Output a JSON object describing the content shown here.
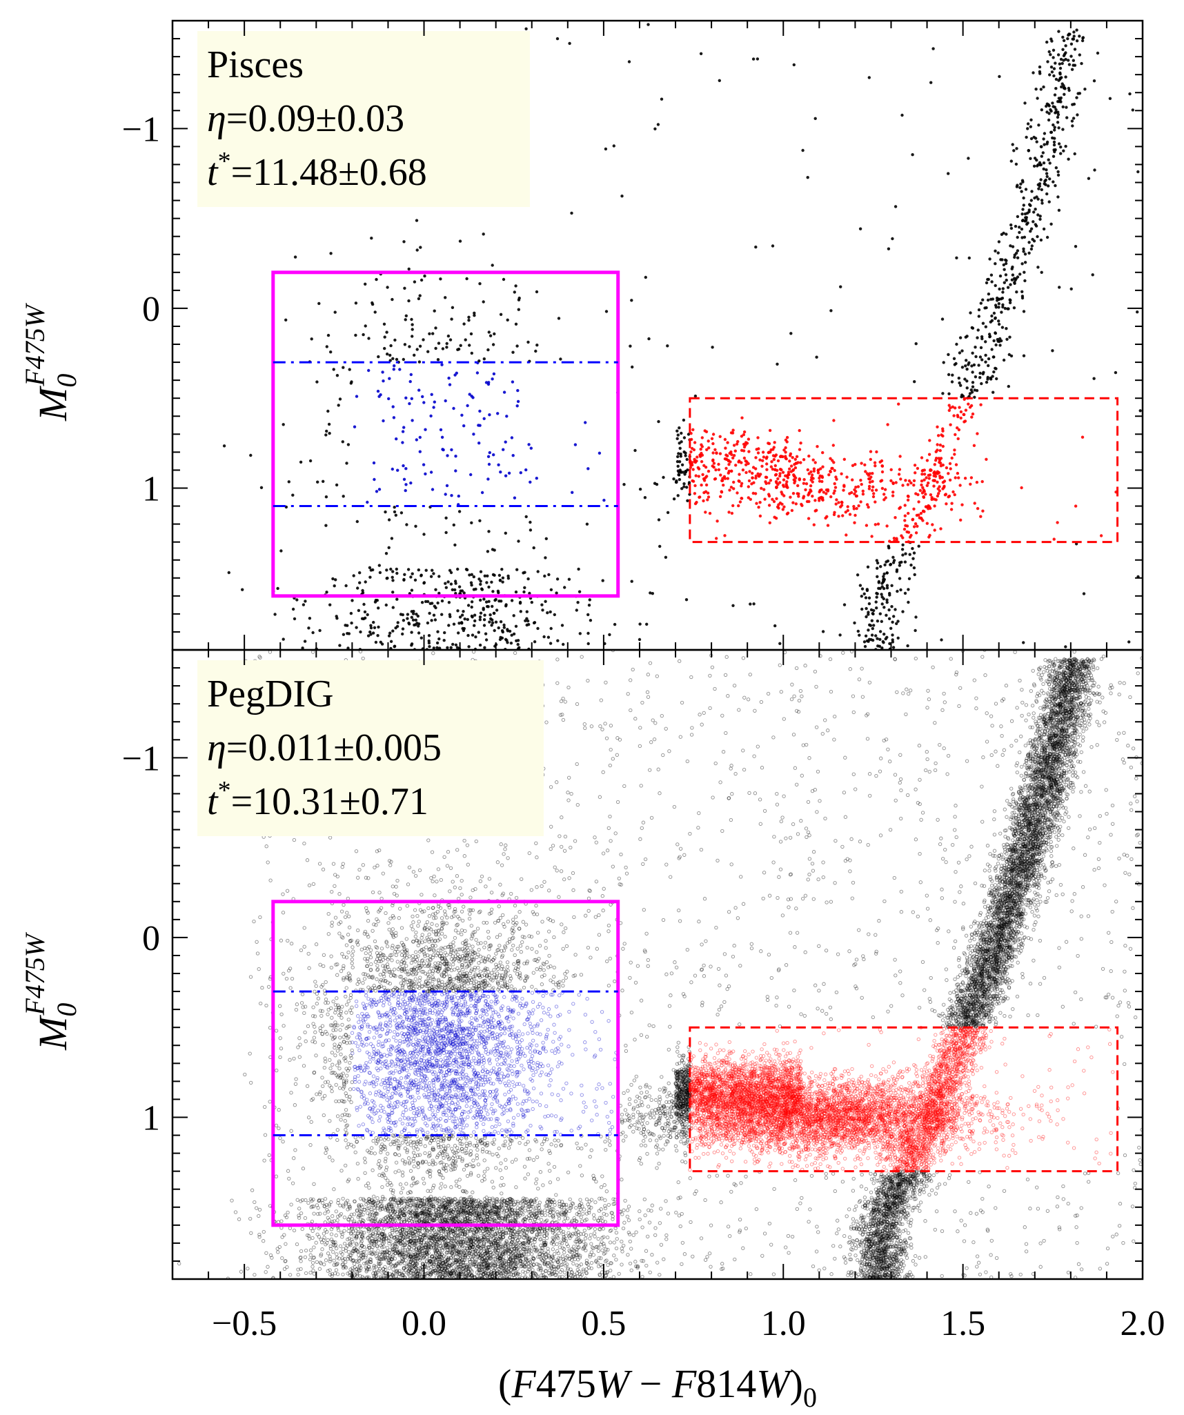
{
  "chart_data": [
    {
      "type": "scatter",
      "panel": "top",
      "annotation": {
        "name": "Pisces",
        "eta_label": "η",
        "eta_value": "=0.09±0.03",
        "tstar_label": "t",
        "tstar_value": "=11.48±0.68"
      },
      "ylabel_main": "M",
      "ylabel_sub": "0",
      "ylabel_sup": "F475W",
      "xlim": [
        -0.7,
        2.0
      ],
      "ylim": [
        1.9,
        -1.6
      ],
      "yticks": [
        -1,
        0,
        1
      ],
      "ytick_labels": [
        "−1",
        "0",
        "1"
      ],
      "magenta_box": {
        "x": [
          -0.42,
          0.54
        ],
        "y": [
          -0.2,
          1.6
        ],
        "color": "#ff00ff"
      },
      "blue_lines": {
        "x": [
          -0.42,
          0.54
        ],
        "y": [
          0.3,
          1.1
        ],
        "color": "#0000ff"
      },
      "red_box": {
        "x": [
          0.74,
          1.93
        ],
        "y": [
          0.5,
          1.3
        ],
        "color": "#ff0000"
      },
      "points": {
        "black": 1400,
        "blue": 130,
        "red": 750
      }
    },
    {
      "type": "scatter",
      "panel": "bottom",
      "annotation": {
        "name": "PegDIG",
        "eta_label": "η",
        "eta_value": "=0.011±0.005",
        "tstar_label": "t",
        "tstar_value": "=10.31±0.71"
      },
      "ylabel_main": "M",
      "ylabel_sub": "0",
      "ylabel_sup": "F475W",
      "xlim": [
        -0.7,
        2.0
      ],
      "ylim": [
        1.9,
        -1.6
      ],
      "yticks": [
        -1,
        0,
        1
      ],
      "ytick_labels": [
        "−1",
        "0",
        "1"
      ],
      "magenta_box": {
        "x": [
          -0.42,
          0.54
        ],
        "y": [
          -0.2,
          1.6
        ],
        "color": "#ff00ff"
      },
      "blue_lines": {
        "x": [
          -0.42,
          0.54
        ],
        "y": [
          0.3,
          1.1
        ],
        "color": "#0000ff"
      },
      "red_box": {
        "x": [
          0.74,
          1.93
        ],
        "y": [
          0.5,
          1.3
        ],
        "color": "#ff0000"
      },
      "points": {
        "black": 14000,
        "blue": 2200,
        "red": 7000
      }
    }
  ],
  "shared_x": {
    "xticks": [
      -0.5,
      0.0,
      0.5,
      1.0,
      1.5,
      2.0
    ],
    "xtick_labels": [
      "−0.5",
      "0.0",
      "0.5",
      "1.0",
      "1.5",
      "2.0"
    ],
    "xlabel_open": "(",
    "xlabel_a": "F",
    "xlabel_a_num": "475",
    "xlabel_w1": "W",
    "xlabel_minus": " − ",
    "xlabel_b": "F",
    "xlabel_b_num": "814",
    "xlabel_w2": "W",
    "xlabel_close": ")",
    "xlabel_sub": "0"
  },
  "colors": {
    "black": "#000000",
    "blue": "#0000cc",
    "red": "#ff0000",
    "magenta": "#ff00ff",
    "legend_bg": "#fdfde8"
  }
}
